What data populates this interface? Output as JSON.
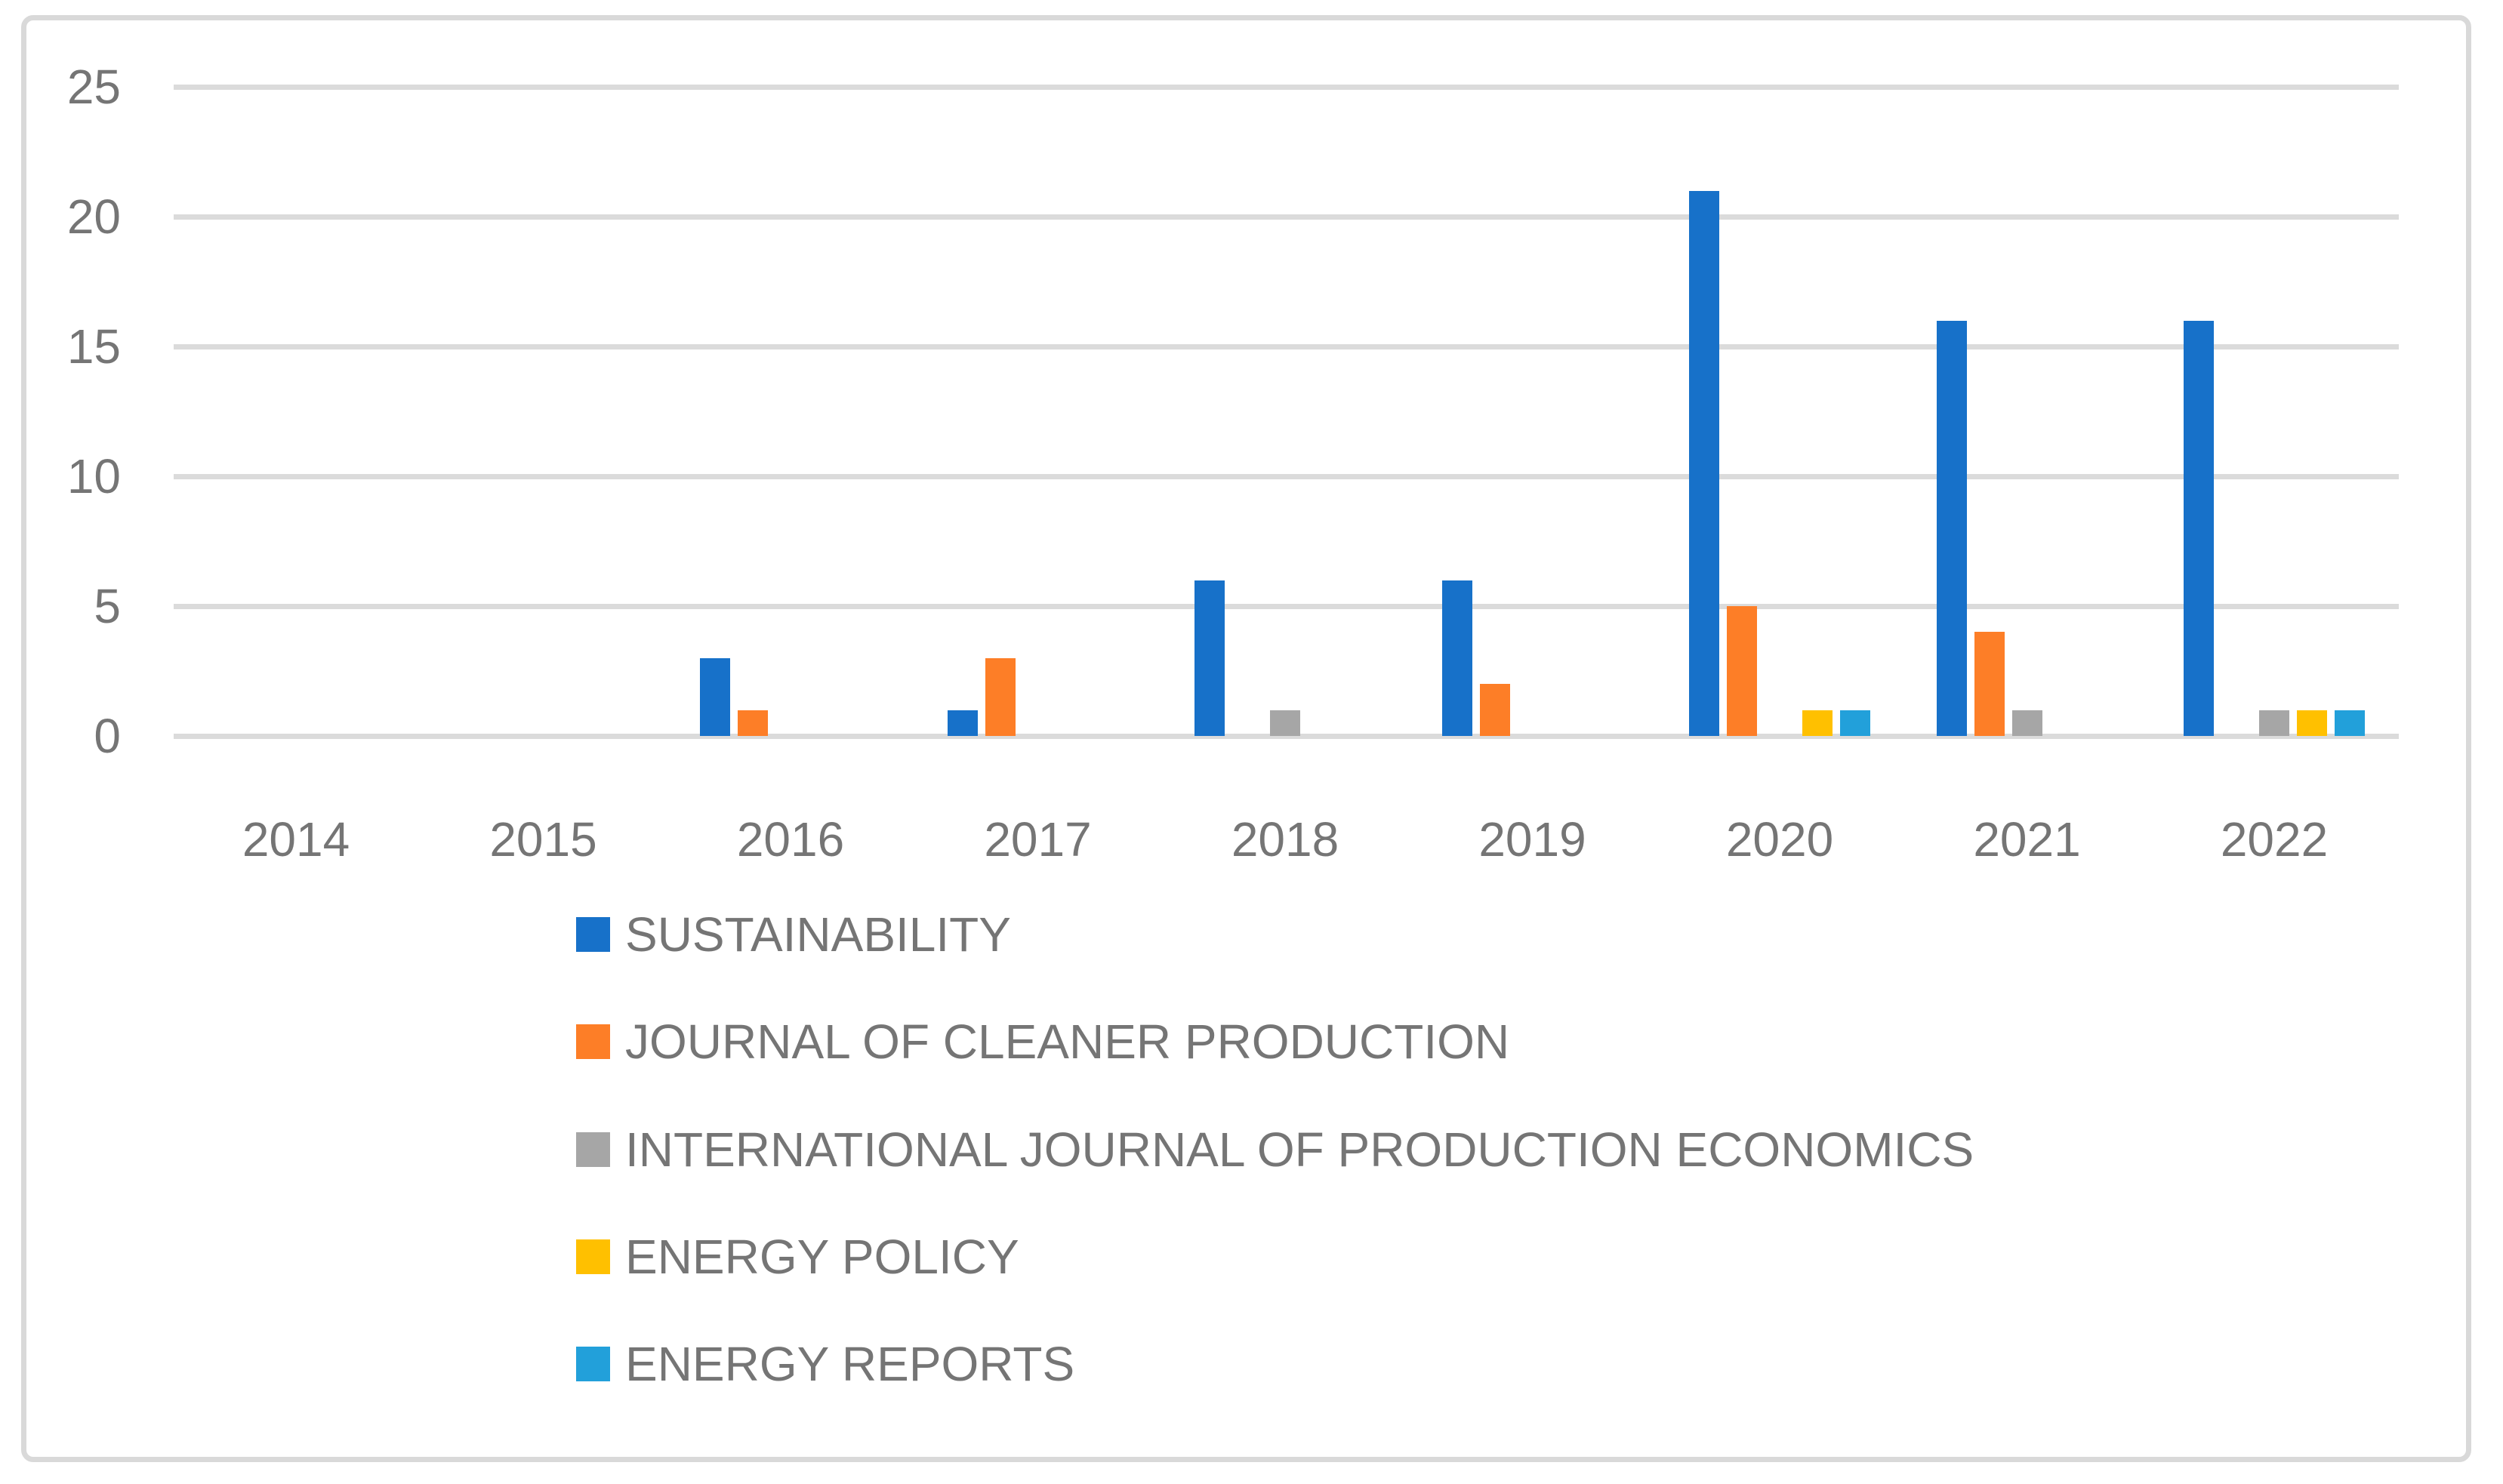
{
  "chart_data": {
    "type": "bar",
    "title": "",
    "xlabel": "",
    "ylabel": "",
    "categories": [
      "2014",
      "2015",
      "2016",
      "2017",
      "2018",
      "2019",
      "2020",
      "2021",
      "2022"
    ],
    "series": [
      {
        "name": "SUSTAINABILITY",
        "color": "#1771C9",
        "values": [
          0,
          0,
          3,
          1,
          6,
          6,
          21,
          16,
          16
        ]
      },
      {
        "name": "JOURNAL OF CLEANER PRODUCTION",
        "color": "#FD7E27",
        "values": [
          0,
          0,
          1,
          3,
          0,
          2,
          5,
          4,
          0
        ]
      },
      {
        "name": "INTERNATIONAL JOURNAL OF PRODUCTION ECONOMICS",
        "color": "#A6A6A6",
        "values": [
          0,
          0,
          0,
          0,
          1,
          0,
          0,
          1,
          1
        ]
      },
      {
        "name": "ENERGY POLICY",
        "color": "#FFC000",
        "values": [
          0,
          0,
          0,
          0,
          0,
          0,
          1,
          0,
          1
        ]
      },
      {
        "name": "ENERGY REPORTS",
        "color": "#22A0DA",
        "values": [
          0,
          0,
          0,
          0,
          0,
          0,
          1,
          0,
          1
        ]
      }
    ],
    "y_ticks": [
      0,
      5,
      10,
      15,
      20,
      25
    ],
    "ylim": [
      0,
      25
    ],
    "grid": true,
    "legend_position": "bottom-left",
    "colors": {
      "gridline": "#DBDBDB",
      "frame_border": "#D9D9D9",
      "axis_text": "#757575",
      "background": "#FFFFFF"
    }
  }
}
